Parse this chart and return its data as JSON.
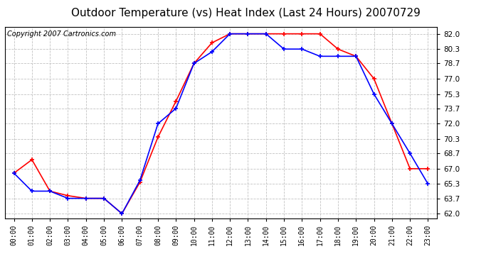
{
  "title": "Outdoor Temperature (vs) Heat Index (Last 24 Hours) 20070729",
  "copyright_text": "Copyright 2007 Cartronics.com",
  "hours": [
    "00:00",
    "01:00",
    "02:00",
    "03:00",
    "04:00",
    "05:00",
    "06:00",
    "07:00",
    "08:00",
    "09:00",
    "10:00",
    "11:00",
    "12:00",
    "13:00",
    "14:00",
    "15:00",
    "16:00",
    "17:00",
    "18:00",
    "19:00",
    "20:00",
    "21:00",
    "22:00",
    "23:00"
  ],
  "outdoor_temp": [
    66.5,
    68.0,
    64.5,
    64.0,
    63.7,
    63.7,
    62.0,
    65.5,
    70.5,
    74.5,
    78.7,
    81.0,
    82.0,
    82.0,
    82.0,
    82.0,
    82.0,
    82.0,
    80.3,
    79.5,
    77.0,
    72.0,
    67.0,
    67.0
  ],
  "heat_index": [
    66.5,
    64.5,
    64.5,
    63.7,
    63.7,
    63.7,
    62.0,
    65.7,
    72.0,
    73.7,
    78.7,
    80.0,
    82.0,
    82.0,
    82.0,
    80.3,
    80.3,
    79.5,
    79.5,
    79.5,
    75.3,
    72.0,
    68.7,
    65.3
  ],
  "outdoor_color": "#FF0000",
  "heat_index_color": "#0000FF",
  "bg_color": "#FFFFFF",
  "plot_bg_color": "#FFFFFF",
  "grid_color": "#BBBBBB",
  "yticks": [
    62.0,
    63.7,
    65.3,
    67.0,
    68.7,
    70.3,
    72.0,
    73.7,
    75.3,
    77.0,
    78.7,
    80.3,
    82.0
  ],
  "ylim": [
    61.5,
    82.8
  ],
  "title_fontsize": 11,
  "copyright_fontsize": 7
}
